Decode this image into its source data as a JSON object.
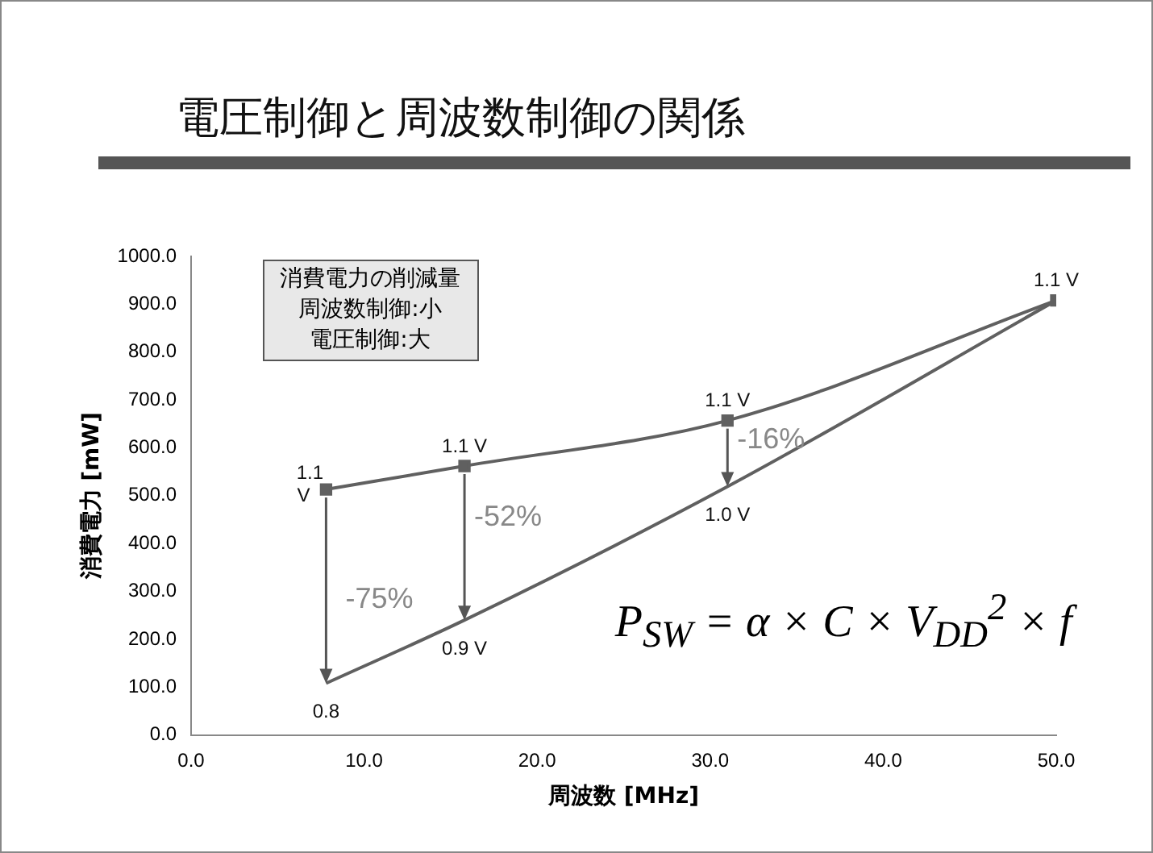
{
  "chart_data": {
    "type": "line",
    "title": "電圧制御と周波数制御の関係",
    "xlabel": "周波数 [MHz]",
    "ylabel": "消費電力 [mW]",
    "x": [
      7.8,
      15.8,
      31.0,
      50.0
    ],
    "series": [
      {
        "type": "line",
        "color": "#606060",
        "marker": "square",
        "values": [
          513,
          562,
          657,
          908
        ]
      },
      {
        "type": "line",
        "color": "#606060",
        "marker": "none",
        "values": [
          108,
          240,
          519,
          908
        ]
      }
    ],
    "xlim": [
      0,
      50
    ],
    "xticks": [
      {
        "value": 0,
        "label": "0.0"
      },
      {
        "value": 10,
        "label": "10.0"
      },
      {
        "value": 20,
        "label": "20.0"
      },
      {
        "value": 30,
        "label": "30.0"
      },
      {
        "value": 40,
        "label": "40.0"
      },
      {
        "value": 50,
        "label": "50.0"
      }
    ],
    "ylim": [
      0,
      1000
    ],
    "yticks": [
      {
        "value": 0,
        "label": "0.0"
      },
      {
        "value": 100,
        "label": "100.0"
      },
      {
        "value": 200,
        "label": "200.0"
      },
      {
        "value": 300,
        "label": "300.0"
      },
      {
        "value": 400,
        "label": "400.0"
      },
      {
        "value": 500,
        "label": "500.0"
      },
      {
        "value": 600,
        "label": "600.0"
      },
      {
        "value": 700,
        "label": "700.0"
      },
      {
        "value": 800,
        "label": "800.0"
      },
      {
        "value": 900,
        "label": "900.0"
      },
      {
        "value": 1000,
        "label": "1000.0"
      }
    ],
    "grid": false,
    "legend": false,
    "annotations": [
      {
        "text": "1.1 V",
        "x": 7.8,
        "y": 513
      },
      {
        "text": "1.1 V",
        "x": 15.8,
        "y": 562
      },
      {
        "text": "1.1 V",
        "x": 31.0,
        "y": 657
      },
      {
        "text": "1.1 V",
        "x": 50.0,
        "y": 908
      },
      {
        "text": "0.8",
        "x": 7.8,
        "y": 108
      },
      {
        "text": "0.9 V",
        "x": 15.8,
        "y": 240
      },
      {
        "text": "1.0 V",
        "x": 31.0,
        "y": 519
      },
      {
        "text": "-75%",
        "x": 7.8,
        "y": 108
      },
      {
        "text": "-52%",
        "x": 15.8,
        "y": 240
      },
      {
        "text": "-16%",
        "x": 31.0,
        "y": 519
      },
      "消費電力の削減量",
      "周波数制御:小",
      "電圧制御:大",
      "P$_{SW}$ = α × C × V$_{DD}$$^{2}$ × f"
    ]
  }
}
